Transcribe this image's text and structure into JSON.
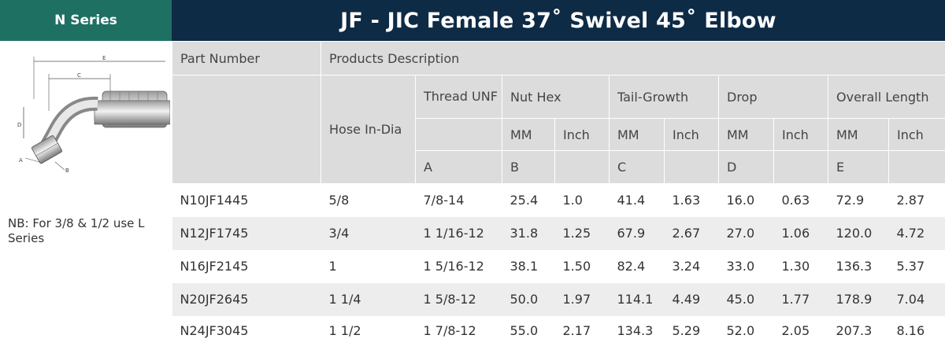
{
  "series_label": "N Series",
  "title": "JF - JIC Female 37˚ Swivel 45˚ Elbow",
  "note": "NB: For 3/8 & 1/2 use L Series",
  "diagram": {
    "labels": [
      "A",
      "B",
      "C",
      "D",
      "E"
    ]
  },
  "header": {
    "part_number": "Part Number",
    "products_description": "Products Description",
    "hose_in_dia": "Hose In-Dia",
    "thread_unf": "Thread UNF",
    "nut_hex": "Nut Hex",
    "tail_growth": "Tail-Growth",
    "drop": "Drop",
    "overall_length": "Overall Length",
    "mm": "MM",
    "inch": "Inch",
    "dim_a": "A",
    "dim_b": "B",
    "dim_c": "C",
    "dim_d": "D",
    "dim_e": "E"
  },
  "rows": [
    {
      "part": "N10JF1445",
      "hose": "5/8",
      "thread": "7/8-14",
      "nut_mm": "25.4",
      "nut_in": "1.0",
      "tail_mm": "41.4",
      "tail_in": "1.63",
      "drop_mm": "16.0",
      "drop_in": "0.63",
      "len_mm": "72.9",
      "len_in": "2.87"
    },
    {
      "part": "N12JF1745",
      "hose": "3/4",
      "thread": "1 1/16-12",
      "nut_mm": "31.8",
      "nut_in": "1.25",
      "tail_mm": "67.9",
      "tail_in": "2.67",
      "drop_mm": "27.0",
      "drop_in": "1.06",
      "len_mm": "120.0",
      "len_in": "4.72"
    },
    {
      "part": "N16JF2145",
      "hose": "1",
      "thread": "1 5/16-12",
      "nut_mm": "38.1",
      "nut_in": "1.50",
      "tail_mm": "82.4",
      "tail_in": "3.24",
      "drop_mm": "33.0",
      "drop_in": "1.30",
      "len_mm": "136.3",
      "len_in": "5.37"
    },
    {
      "part": "N20JF2645",
      "hose": "1 1/4",
      "thread": "1 5/8-12",
      "nut_mm": "50.0",
      "nut_in": "1.97",
      "tail_mm": "114.1",
      "tail_in": "4.49",
      "drop_mm": "45.0",
      "drop_in": "1.77",
      "len_mm": "178.9",
      "len_in": "7.04"
    },
    {
      "part": "N24JF3045",
      "hose": "1 1/2",
      "thread": "1 7/8-12",
      "nut_mm": "55.0",
      "nut_in": "2.17",
      "tail_mm": "134.3",
      "tail_in": "5.29",
      "drop_mm": "52.0",
      "drop_in": "2.05",
      "len_mm": "207.3",
      "len_in": "8.16"
    }
  ]
}
